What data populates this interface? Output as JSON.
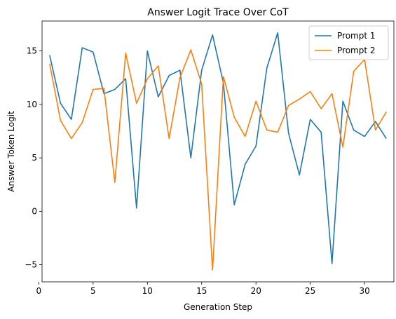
{
  "chart_data": {
    "type": "line",
    "title": "Answer Logit Trace Over CoT",
    "xlabel": "Generation Step",
    "ylabel": "Answer Token Logit",
    "xlim": [
      0.3,
      32.7
    ],
    "ylim": [
      -6.6,
      17.8
    ],
    "xticks": [
      0,
      5,
      10,
      15,
      20,
      25,
      30
    ],
    "yticks": [
      -5,
      0,
      5,
      10,
      15
    ],
    "legend_position": "top-right",
    "x": [
      1,
      2,
      3,
      4,
      5,
      6,
      7,
      8,
      9,
      10,
      11,
      12,
      13,
      14,
      15,
      16,
      17,
      18,
      19,
      20,
      21,
      22,
      23,
      24,
      25,
      26,
      27,
      28,
      29,
      30,
      31,
      32
    ],
    "series": [
      {
        "name": "Prompt 1",
        "color": "#1f77b4",
        "values": [
          14.6,
          10.1,
          8.6,
          15.3,
          14.9,
          11.0,
          11.4,
          12.4,
          0.3,
          15.0,
          10.7,
          12.7,
          13.2,
          5.0,
          13.2,
          16.5,
          12.0,
          0.6,
          4.4,
          6.1,
          13.4,
          16.7,
          7.3,
          3.4,
          8.6,
          7.4,
          -4.9,
          10.3,
          7.6,
          7.0,
          8.4,
          6.8
        ]
      },
      {
        "name": "Prompt 2",
        "color": "#ff7f0e",
        "values": [
          13.8,
          8.5,
          6.8,
          8.3,
          11.4,
          11.5,
          2.7,
          14.8,
          10.1,
          12.4,
          13.6,
          6.8,
          12.5,
          15.1,
          11.9,
          -5.5,
          12.6,
          8.8,
          7.0,
          10.3,
          7.6,
          7.4,
          9.9,
          10.5,
          11.2,
          9.6,
          11.0,
          6.0,
          13.1,
          14.2,
          7.6,
          9.3
        ]
      }
    ]
  }
}
